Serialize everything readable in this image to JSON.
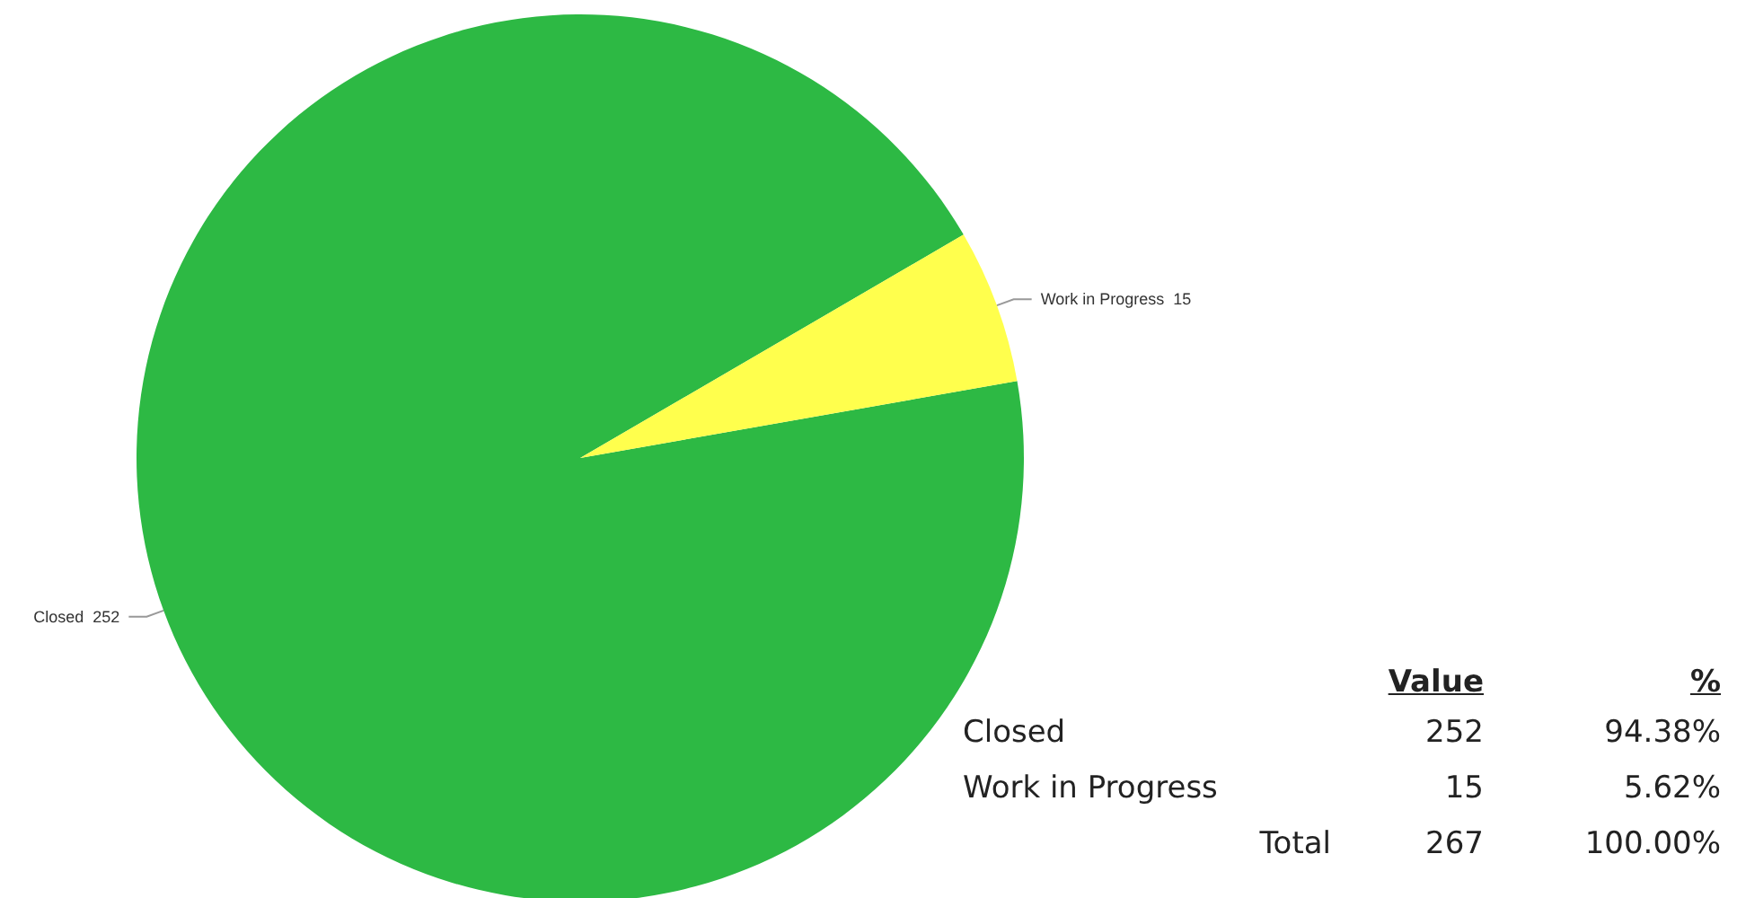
{
  "chart_data": {
    "type": "pie",
    "categories": [
      "Closed",
      "Work in Progress"
    ],
    "values": [
      252,
      15
    ],
    "colors": [
      "#2db944",
      "#ffff4d"
    ],
    "data_labels": true,
    "annotations": [
      "Value",
      "%",
      "Closed",
      "252",
      "94.38%",
      "Work in Progress",
      "15",
      "5.62%",
      "Total",
      "267",
      "100.00%"
    ]
  }
}
